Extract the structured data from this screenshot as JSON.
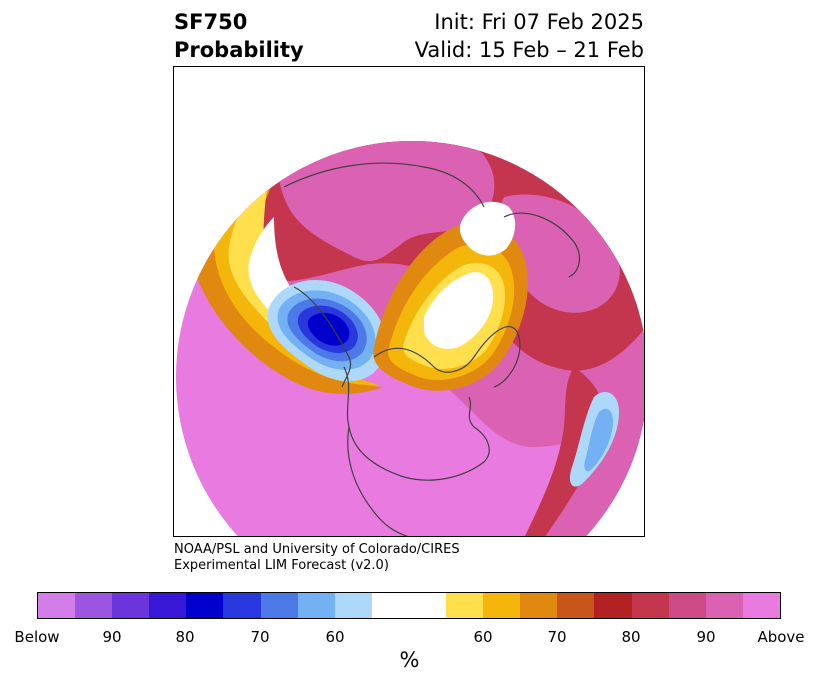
{
  "header": {
    "title_line1": "SF750",
    "title_line2": "Probability",
    "init_text": "Init: Fri 07 Feb 2025",
    "valid_text": "Valid: 15 Feb – 21 Feb"
  },
  "credit": {
    "line1": "NOAA/PSL and University of Colorado/CIRES",
    "line2": "Experimental LIM Forecast (v2.0)"
  },
  "colorbar": {
    "unit": "%",
    "colors": [
      "#d37de8",
      "#9b55e0",
      "#6b35dc",
      "#3818d6",
      "#0000cc",
      "#2838dc",
      "#4d78e8",
      "#73b0f4",
      "#aed8fa",
      "#ffffff",
      "#ffffff",
      "#ffe04c",
      "#f4b60a",
      "#e08810",
      "#c8561a",
      "#b22222",
      "#c4364e",
      "#cc4a86",
      "#db62b2",
      "#e87ae0"
    ],
    "tick_labels": [
      "Below",
      "90",
      "80",
      "70",
      "60",
      "60",
      "70",
      "80",
      "90",
      "Above"
    ]
  },
  "map": {
    "colors": {
      "above": "#e87ae0",
      "p90": "#db62b2",
      "p80": "#c4364e",
      "p75": "#b22222",
      "p70": "#e08810",
      "p65": "#f4b60a",
      "p60": "#ffe04c",
      "b60": "#aed8fa",
      "b65": "#73b0f4",
      "b70": "#4d78e8",
      "b80": "#2838dc",
      "b90": "#0000cc",
      "below": "#3818d6",
      "coast": "#404040"
    }
  }
}
